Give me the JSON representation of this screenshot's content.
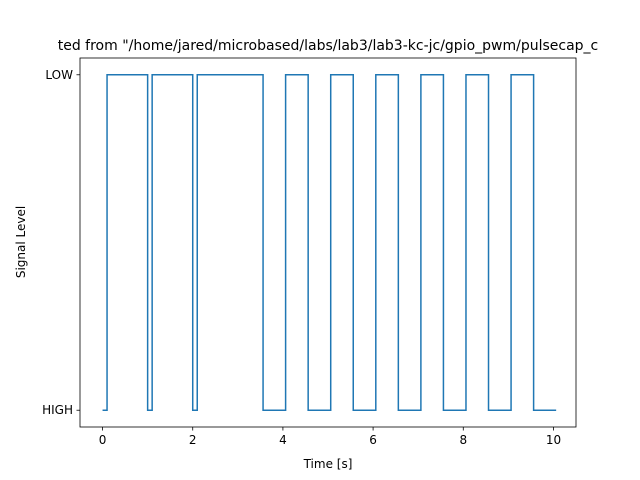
{
  "chart_data": {
    "type": "line",
    "title": "ted from \"/home/jared/microbased/labs/lab3/lab3-kc-jc/gpio_pwm/pulsecap_c",
    "xlabel": "Time [s]",
    "ylabel": "Signal Level",
    "xlim": [
      -0.5,
      10.5
    ],
    "ylim": [
      -0.05,
      1.05
    ],
    "x_ticks": [
      0,
      2,
      4,
      6,
      8,
      10
    ],
    "x_tick_labels": [
      "0",
      "2",
      "4",
      "6",
      "8",
      "10"
    ],
    "y_ticks": [
      0,
      1
    ],
    "y_tick_labels": [
      "HIGH",
      "LOW"
    ],
    "grid": false,
    "line_color": "#1f77b4",
    "series": [
      {
        "step": "post",
        "x": [
          0.0,
          0.1,
          1.0,
          1.1,
          2.0,
          2.1,
          3.56,
          4.06,
          4.56,
          5.06,
          5.56,
          6.06,
          6.56,
          7.06,
          7.56,
          8.06,
          8.56,
          9.06,
          9.56,
          10.06
        ],
        "values": [
          0,
          1,
          0,
          1,
          0,
          1,
          0,
          1,
          0,
          1,
          0,
          1,
          0,
          1,
          0,
          1,
          0,
          1,
          0,
          0
        ]
      }
    ]
  }
}
